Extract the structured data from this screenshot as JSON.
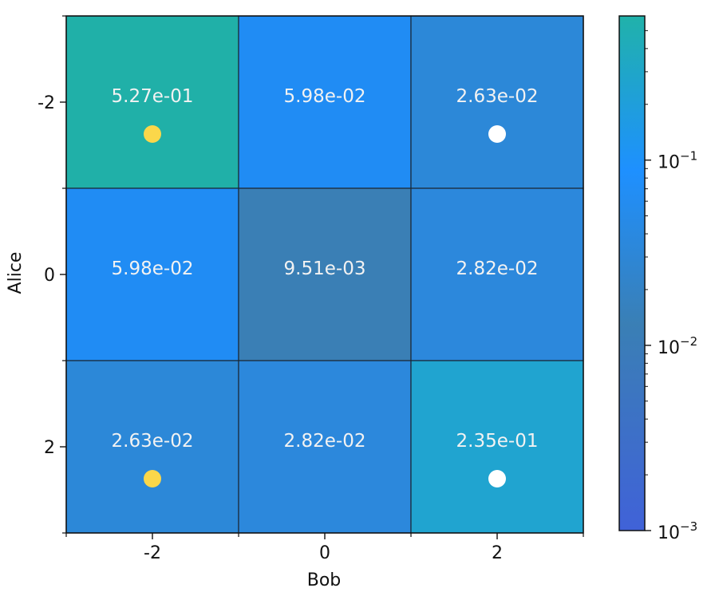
{
  "chart_data": {
    "type": "heatmap",
    "xlabel": "Bob",
    "ylabel": "Alice",
    "x_categories": [
      "-2",
      "0",
      "2"
    ],
    "y_categories": [
      "-2",
      "0",
      "2"
    ],
    "values": [
      [
        0.527,
        0.0598,
        0.0263
      ],
      [
        0.0598,
        0.00951,
        0.0282
      ],
      [
        0.0263,
        0.0282,
        0.235
      ]
    ],
    "cell_labels": [
      [
        "5.27e-01",
        "5.98e-02",
        "2.63e-02"
      ],
      [
        "5.98e-02",
        "9.51e-03",
        "2.82e-02"
      ],
      [
        "2.63e-02",
        "2.82e-02",
        "2.35e-01"
      ]
    ],
    "colors": {
      "r0c0": "#20b0a8",
      "r0c1": "#208cf4",
      "r0c2": "#2c88d8",
      "r1c0": "#208cf4",
      "r1c1": "#3a7fb5",
      "r1c2": "#2c88dc",
      "r2c0": "#2c88d8",
      "r2c1": "#2c88dc",
      "r2c2": "#20a4d0"
    },
    "markers": [
      {
        "x": "-2",
        "y": "-2",
        "color": "#fbd74a"
      },
      {
        "x": "2",
        "y": "-2",
        "color": "#ffffff"
      },
      {
        "x": "-2",
        "y": "2",
        "color": "#fbd74a"
      },
      {
        "x": "2",
        "y": "2",
        "color": "#ffffff"
      }
    ],
    "colorbar": {
      "scale": "log",
      "range": [
        0.001,
        0.6
      ],
      "tick_values": [
        0.001,
        0.01,
        0.1
      ],
      "tick_labels": [
        {
          "base": "10",
          "exp": "−3"
        },
        {
          "base": "10",
          "exp": "−2"
        },
        {
          "base": "10",
          "exp": "−1"
        }
      ],
      "gradient": [
        "#4062d8",
        "#3a7fb5",
        "#1e90ff",
        "#20b2aa"
      ]
    }
  }
}
